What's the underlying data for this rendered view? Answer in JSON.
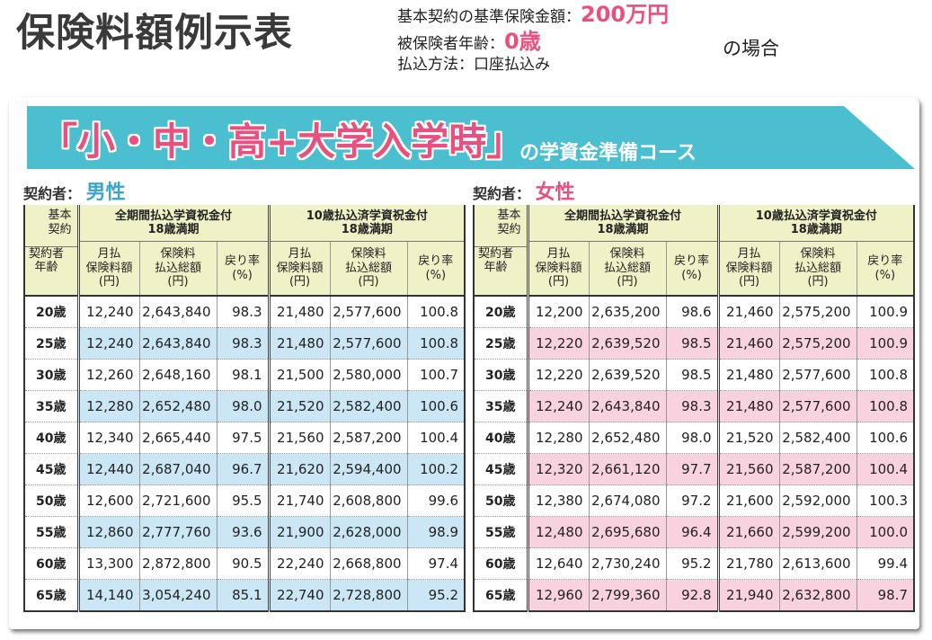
{
  "page_title": "保険料額例示表",
  "conditions": {
    "basic_amount_label": "基本契約の基準保険金額：",
    "basic_amount_value": "200万円",
    "insured_age_label": "被保険者年齢：",
    "insured_age_value": "0歳",
    "payment_method_label": "払込方法：",
    "payment_method_value": "口座払込み",
    "suffix": "の場合"
  },
  "banner": {
    "title": "「小・中・高+大学入学時」",
    "subtitle": "の学資金準備コース"
  },
  "header": {
    "corner_top": "基本\n契約",
    "corner_bottom": "契約者\n年齢",
    "plan_full": "全期間払込学資祝金付\n18歳満期",
    "plan_10": "10歳払込済学資祝金付\n18歳満期",
    "col_monthly": "月払\n保険料額\n(円)",
    "col_total": "保険料\n払込総額\n(円)",
    "col_rate": "戻り率\n(%)"
  },
  "male": {
    "contractor_label": "契約者：",
    "gender": "男性",
    "rows": [
      [
        "20歳",
        "12,240",
        "2,643,840",
        "98.3",
        "21,480",
        "2,577,600",
        "100.8"
      ],
      [
        "25歳",
        "12,240",
        "2,643,840",
        "98.3",
        "21,480",
        "2,577,600",
        "100.8"
      ],
      [
        "30歳",
        "12,260",
        "2,648,160",
        "98.1",
        "21,500",
        "2,580,000",
        "100.7"
      ],
      [
        "35歳",
        "12,280",
        "2,652,480",
        "98.0",
        "21,520",
        "2,582,400",
        "100.6"
      ],
      [
        "40歳",
        "12,340",
        "2,665,440",
        "97.5",
        "21,560",
        "2,587,200",
        "100.4"
      ],
      [
        "45歳",
        "12,440",
        "2,687,040",
        "96.7",
        "21,620",
        "2,594,400",
        "100.2"
      ],
      [
        "50歳",
        "12,600",
        "2,721,600",
        "95.5",
        "21,740",
        "2,608,800",
        "99.6"
      ],
      [
        "55歳",
        "12,860",
        "2,777,760",
        "93.6",
        "21,900",
        "2,628,000",
        "98.9"
      ],
      [
        "60歳",
        "13,300",
        "2,872,800",
        "90.5",
        "22,240",
        "2,668,800",
        "97.4"
      ],
      [
        "65歳",
        "14,140",
        "3,054,240",
        "85.1",
        "22,740",
        "2,728,800",
        "95.2"
      ]
    ]
  },
  "female": {
    "contractor_label": "契約者：",
    "gender": "女性",
    "rows": [
      [
        "20歳",
        "12,200",
        "2,635,200",
        "98.6",
        "21,460",
        "2,575,200",
        "100.9"
      ],
      [
        "25歳",
        "12,220",
        "2,639,520",
        "98.5",
        "21,460",
        "2,575,200",
        "100.9"
      ],
      [
        "30歳",
        "12,220",
        "2,639,520",
        "98.5",
        "21,480",
        "2,577,600",
        "100.8"
      ],
      [
        "35歳",
        "12,240",
        "2,643,840",
        "98.3",
        "21,480",
        "2,577,600",
        "100.8"
      ],
      [
        "40歳",
        "12,280",
        "2,652,480",
        "98.0",
        "21,520",
        "2,582,400",
        "100.6"
      ],
      [
        "45歳",
        "12,320",
        "2,661,120",
        "97.7",
        "21,560",
        "2,587,200",
        "100.4"
      ],
      [
        "50歳",
        "12,380",
        "2,674,080",
        "97.2",
        "21,600",
        "2,592,000",
        "100.3"
      ],
      [
        "55歳",
        "12,480",
        "2,695,680",
        "96.4",
        "21,660",
        "2,599,200",
        "100.0"
      ],
      [
        "60歳",
        "12,640",
        "2,730,240",
        "95.2",
        "21,780",
        "2,613,600",
        "99.4"
      ],
      [
        "65歳",
        "12,960",
        "2,799,360",
        "92.8",
        "21,940",
        "2,632,800",
        "98.7"
      ]
    ]
  },
  "colors": {
    "accent_pink": "#e8517f",
    "banner_teal": "#4bbfcf",
    "male_row": "#cbe6f4",
    "female_row": "#f9d2e0",
    "header_bg": "#eff2c6"
  }
}
